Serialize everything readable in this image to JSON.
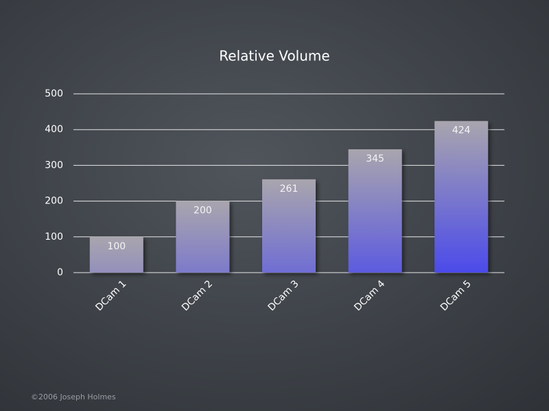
{
  "chart_data": {
    "type": "bar",
    "title": "Relative Volume",
    "categories": [
      "DCam 1",
      "DCam 2",
      "DCam 3",
      "DCam 4",
      "DCam 5"
    ],
    "values": [
      100,
      200,
      261,
      345,
      424
    ],
    "color": "#3a3af5",
    "ylim": [
      0,
      500
    ],
    "yticks": [
      0,
      100,
      200,
      300,
      400,
      500
    ],
    "grid": true
  },
  "footer": "©2006 Joseph Holmes"
}
